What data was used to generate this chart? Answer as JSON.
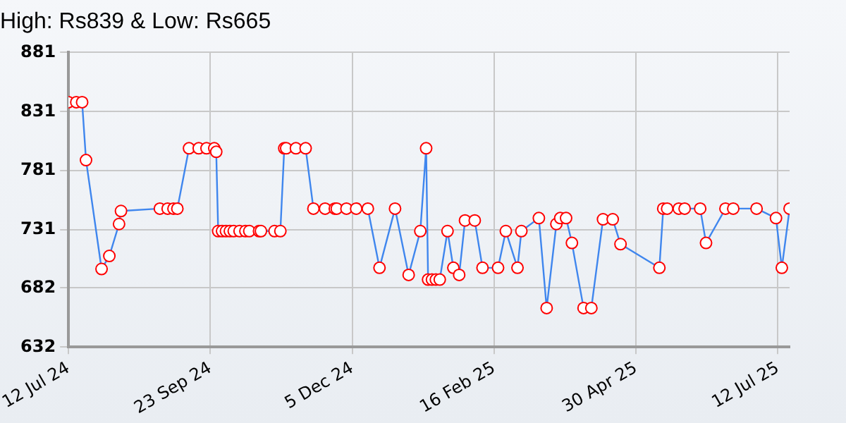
{
  "chart_data": {
    "type": "line",
    "title": "High: Rs839 & Low: Rs665",
    "marker": "circle",
    "grid": true,
    "ylim": [
      632,
      881
    ],
    "yticks": [
      632,
      682,
      731,
      781,
      831,
      881
    ],
    "xlim": [
      "2024-07-12",
      "2025-07-18"
    ],
    "xticks": [
      {
        "value": "2024-07-12",
        "label": "12 Jul 24"
      },
      {
        "value": "2024-09-23",
        "label": "23 Sep 24"
      },
      {
        "value": "2024-12-05",
        "label": "5 Dec 24"
      },
      {
        "value": "2025-02-16",
        "label": "16 Feb 25"
      },
      {
        "value": "2025-04-30",
        "label": "30 Apr 25"
      },
      {
        "value": "2025-07-12",
        "label": "12 Jul 25"
      }
    ],
    "x": [
      "2024-07-12",
      "2024-07-16",
      "2024-07-19",
      "2024-07-21",
      "2024-07-29",
      "2024-08-02",
      "2024-08-07",
      "2024-08-08",
      "2024-08-28",
      "2024-09-01",
      "2024-09-04",
      "2024-09-06",
      "2024-09-12",
      "2024-09-17",
      "2024-09-21",
      "2024-09-25",
      "2024-09-26",
      "2024-09-27",
      "2024-09-29",
      "2024-10-01",
      "2024-10-03",
      "2024-10-05",
      "2024-10-08",
      "2024-10-11",
      "2024-10-13",
      "2024-10-18",
      "2024-10-19",
      "2024-10-26",
      "2024-10-29",
      "2024-10-31",
      "2024-11-01",
      "2024-11-06",
      "2024-11-11",
      "2024-11-15",
      "2024-11-21",
      "2024-11-26",
      "2024-11-27",
      "2024-12-02",
      "2024-12-07",
      "2024-12-13",
      "2024-12-19",
      "2024-12-27",
      "2025-01-03",
      "2025-01-09",
      "2025-01-12",
      "2025-01-13",
      "2025-01-15",
      "2025-01-17",
      "2025-01-19",
      "2025-01-23",
      "2025-01-26",
      "2025-01-29",
      "2025-02-01",
      "2025-02-06",
      "2025-02-10",
      "2025-02-18",
      "2025-02-22",
      "2025-02-28",
      "2025-03-02",
      "2025-03-11",
      "2025-03-15",
      "2025-03-20",
      "2025-03-22",
      "2025-03-25",
      "2025-03-28",
      "2025-04-03",
      "2025-04-07",
      "2025-04-13",
      "2025-04-18",
      "2025-04-22",
      "2025-05-12",
      "2025-05-14",
      "2025-05-16",
      "2025-05-22",
      "2025-05-25",
      "2025-06-02",
      "2025-06-05",
      "2025-06-15",
      "2025-06-19",
      "2025-07-01",
      "2025-07-11",
      "2025-07-14",
      "2025-07-18"
    ],
    "series": [
      {
        "color": "#3f86ee",
        "values": [
          839,
          839,
          839,
          790,
          698,
          709,
          736,
          747,
          749,
          749,
          749,
          749,
          800,
          800,
          800,
          800,
          797,
          730,
          730,
          730,
          730,
          730,
          730,
          730,
          730,
          730,
          730,
          730,
          730,
          800,
          800,
          800,
          800,
          749,
          749,
          749,
          749,
          749,
          749,
          749,
          699,
          749,
          693,
          730,
          800,
          689,
          689,
          689,
          689,
          730,
          699,
          693,
          739,
          739,
          699,
          699,
          730,
          699,
          730,
          741,
          665,
          736,
          741,
          741,
          720,
          665,
          665,
          740,
          740,
          719,
          699,
          749,
          749,
          749,
          749,
          749,
          720,
          749,
          749,
          749,
          741,
          699,
          749
        ]
      }
    ]
  }
}
